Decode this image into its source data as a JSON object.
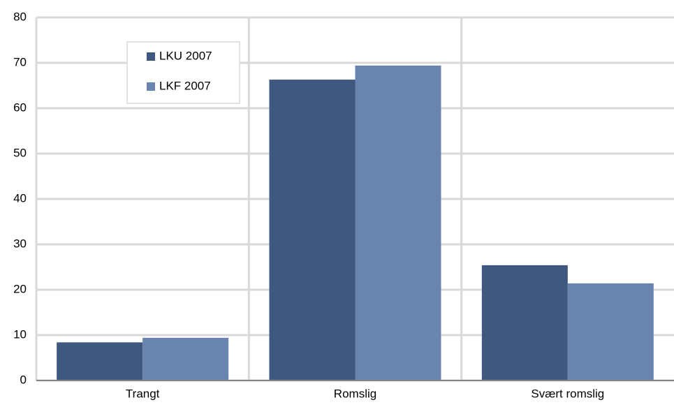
{
  "chart_data": {
    "type": "bar",
    "categories": [
      "Trangt",
      "Romslig",
      "Svært romslig"
    ],
    "series": [
      {
        "name": "LKU 2007",
        "color": "#3f587f",
        "values": [
          8.4,
          66.3,
          25.4
        ]
      },
      {
        "name": "LKF 2007",
        "color": "#6a84b0",
        "values": [
          9.4,
          69.4,
          21.4
        ]
      }
    ],
    "ylim": [
      0,
      80
    ],
    "yticks": [
      0,
      10,
      20,
      30,
      40,
      50,
      60,
      70,
      80
    ],
    "grid": true,
    "legend": "top-left"
  }
}
